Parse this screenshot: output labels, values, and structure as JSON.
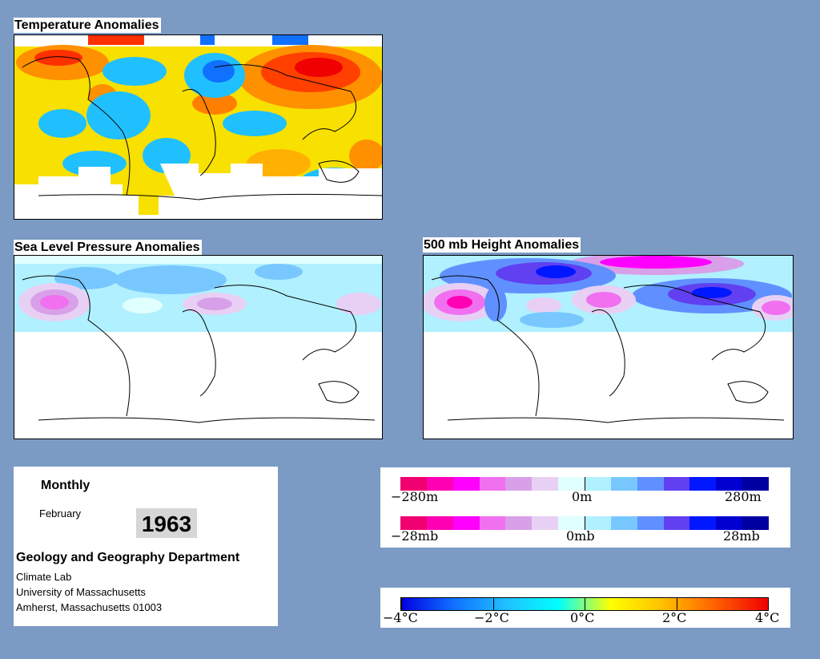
{
  "maps": {
    "temperature": {
      "title": "Temperature Anomalies"
    },
    "slp": {
      "title": "Sea Level Pressure Anomalies"
    },
    "height500": {
      "title": "500 mb Height Anomalies"
    }
  },
  "info": {
    "period": "Monthly",
    "month": "February",
    "year": "1963",
    "department": "Geology and Geography Department",
    "lab": "Climate Lab",
    "university": "University of Massachusetts",
    "address": "Amherst, Massachusetts 01003"
  },
  "legends": {
    "height": {
      "colors": [
        "#f00070",
        "#ff00b4",
        "#ff00ff",
        "#f070f0",
        "#d8a0e8",
        "#e8d0f4",
        "#e0ffff",
        "#b0f0ff",
        "#78c8ff",
        "#6090ff",
        "#6040f0",
        "#0018ff",
        "#0000d0",
        "#0000a0"
      ],
      "min_label": "−280m",
      "mid_label": "0m",
      "max_label": "280m"
    },
    "pressure": {
      "colors": [
        "#f00070",
        "#ff00b4",
        "#ff00ff",
        "#f070f0",
        "#d8a0e8",
        "#e8d0f4",
        "#e0ffff",
        "#b0f0ff",
        "#78c8ff",
        "#6090ff",
        "#6040f0",
        "#0018ff",
        "#0000d0",
        "#0000a0"
      ],
      "min_label": "−28mb",
      "mid_label": "0mb",
      "max_label": "28mb"
    },
    "temperature": {
      "stops": [
        "#0000e0",
        "#1070ff",
        "#20c0ff",
        "#00ffff",
        "#ffff00",
        "#ffc000",
        "#ff6000",
        "#f00000"
      ],
      "labels": [
        "−4°C",
        "−2°C",
        "0°C",
        "2°C",
        "4°C"
      ]
    }
  }
}
